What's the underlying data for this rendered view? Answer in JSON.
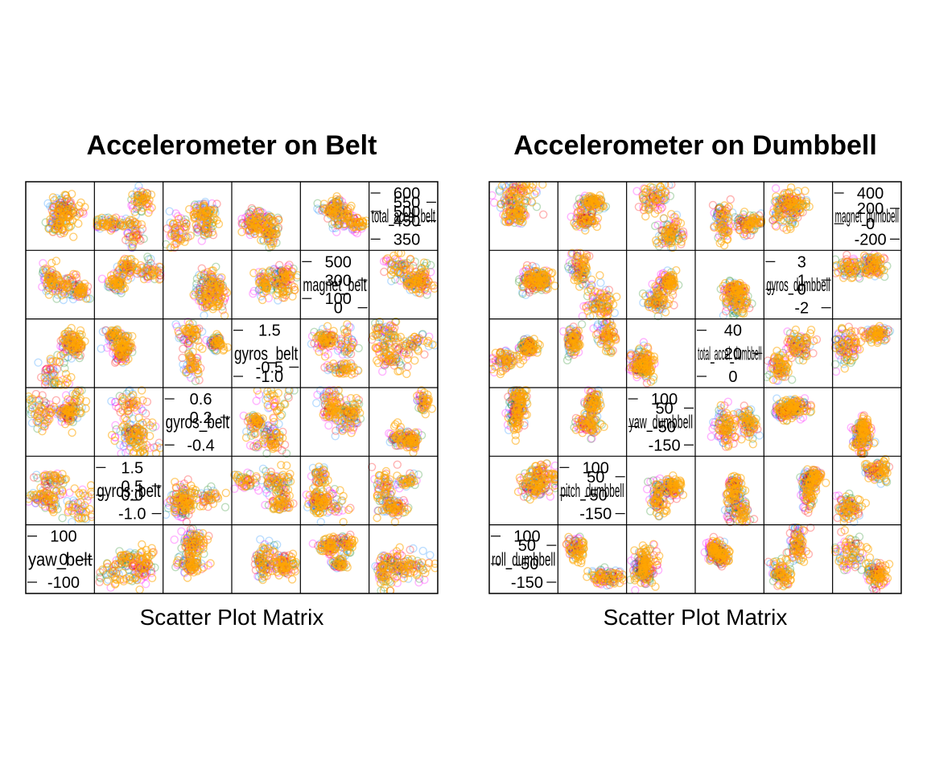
{
  "chart_data": [
    {
      "type": "scatter",
      "title": "Accelerometer on Belt",
      "sublabel": "Scatter Plot Matrix",
      "matrix_size": 6,
      "point_symbol": "open-circle",
      "class_colors": [
        "#ff00ff",
        "#1e90ff",
        "#228b22",
        "#ff0000",
        "#ffa500"
      ],
      "panels": [
        {
          "row": 0,
          "col": 5,
          "variable_label": "total_accel_belt",
          "axis_ticks": [
            {
              "label": "600",
              "value": 600
            },
            {
              "label": "550",
              "value": 550
            },
            {
              "label": "500",
              "value": 500
            },
            {
              "label": "450",
              "value": 450
            },
            {
              "label": "350",
              "value": 350
            }
          ]
        },
        {
          "row": 1,
          "col": 4,
          "variable_label": "magnet_belt",
          "axis_ticks": [
            {
              "label": "500",
              "value": 500
            },
            {
              "label": "300",
              "value": 300
            },
            {
              "label": "100",
              "value": 100
            },
            {
              "label": "0",
              "value": 0
            }
          ]
        },
        {
          "row": 2,
          "col": 3,
          "variable_label": "gyros_belt",
          "axis_ticks": [
            {
              "label": "1.5",
              "value": 1.5
            },
            {
              "label": "-0.5",
              "value": -0.5
            },
            {
              "label": "-1.0",
              "value": -1.0
            }
          ]
        },
        {
          "row": 3,
          "col": 2,
          "variable_label": "gyros_belt",
          "axis_ticks": [
            {
              "label": "0.6",
              "value": 0.6
            },
            {
              "label": "0.2",
              "value": 0.2
            },
            {
              "label": "-0.4",
              "value": -0.4
            }
          ]
        },
        {
          "row": 4,
          "col": 1,
          "variable_label": "gyros_belt",
          "axis_ticks": [
            {
              "label": "1.5",
              "value": 1.5
            },
            {
              "label": "0.5",
              "value": 0.5
            },
            {
              "label": "0.0",
              "value": 0.0
            },
            {
              "label": "-1.0",
              "value": -1.0
            }
          ]
        },
        {
          "row": 5,
          "col": 0,
          "variable_label": "yaw_belt",
          "axis_ticks": [
            {
              "label": "100",
              "value": 100
            },
            {
              "label": "0",
              "value": 0
            },
            {
              "label": "-100",
              "value": -100
            }
          ]
        }
      ]
    },
    {
      "type": "scatter",
      "title": "Accelerometer on Dumbbell",
      "sublabel": "Scatter Plot Matrix",
      "matrix_size": 6,
      "point_symbol": "open-circle",
      "class_colors": [
        "#ff00ff",
        "#1e90ff",
        "#228b22",
        "#ff0000",
        "#ffa500"
      ],
      "panels": [
        {
          "row": 0,
          "col": 5,
          "variable_label": "magnet_dumbbell",
          "axis_ticks": [
            {
              "label": "400",
              "value": 400
            },
            {
              "label": "200",
              "value": 200
            },
            {
              "label": "0",
              "value": 0
            },
            {
              "label": "-200",
              "value": -200
            }
          ]
        },
        {
          "row": 1,
          "col": 4,
          "variable_label": "gyros_dumbbell",
          "axis_ticks": [
            {
              "label": "3",
              "value": 3
            },
            {
              "label": "1",
              "value": 1
            },
            {
              "label": "0",
              "value": 0
            },
            {
              "label": "-2",
              "value": -2
            }
          ]
        },
        {
          "row": 2,
          "col": 3,
          "variable_label": "total_accel_dumbbell",
          "axis_ticks": [
            {
              "label": "40",
              "value": 40
            },
            {
              "label": "20",
              "value": 20
            },
            {
              "label": "0",
              "value": 0
            }
          ]
        },
        {
          "row": 3,
          "col": 2,
          "variable_label": "yaw_dumbbell",
          "axis_ticks": [
            {
              "label": "100",
              "value": 100
            },
            {
              "label": "50",
              "value": 50
            },
            {
              "label": "-50",
              "value": -50
            },
            {
              "label": "-150",
              "value": -150
            }
          ]
        },
        {
          "row": 4,
          "col": 1,
          "variable_label": "pitch_dumbbell",
          "axis_ticks": [
            {
              "label": "100",
              "value": 100
            },
            {
              "label": "50",
              "value": 50
            },
            {
              "label": "-50",
              "value": -50
            },
            {
              "label": "-150",
              "value": -150
            }
          ]
        },
        {
          "row": 5,
          "col": 0,
          "variable_label": "roll_dumbbell",
          "axis_ticks": [
            {
              "label": "100",
              "value": 100
            },
            {
              "label": "50",
              "value": 50
            },
            {
              "label": "-50",
              "value": -50
            },
            {
              "label": "-150",
              "value": -150
            }
          ]
        }
      ]
    }
  ]
}
